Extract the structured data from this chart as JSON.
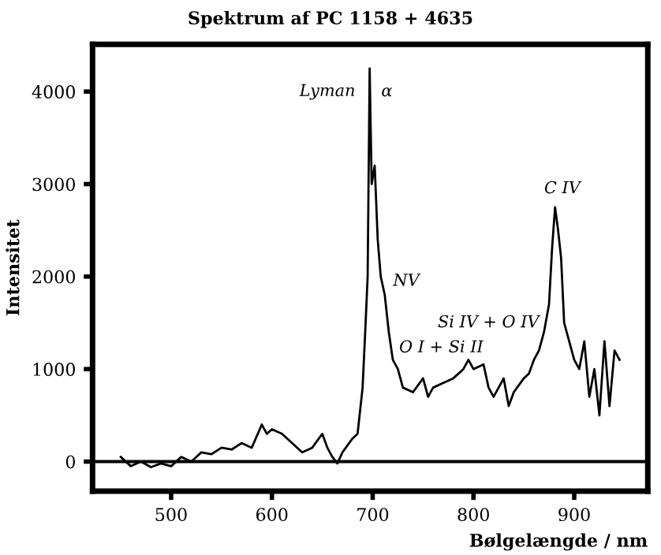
{
  "chart_data": {
    "type": "line",
    "title": "Spektrum af PC 1158 + 4635",
    "xlabel": "Bølgelængde / nm",
    "ylabel": "Intensitet",
    "xlim": [
      422,
      973
    ],
    "ylim": [
      -320,
      4510
    ],
    "xticks": [
      500,
      600,
      700,
      800,
      900
    ],
    "yticks": [
      0,
      1000,
      2000,
      3000,
      4000
    ],
    "grid": false,
    "legend": false,
    "marker": "none",
    "line_style": "solid",
    "ref_lines": [
      {
        "axis": "y",
        "value": 0,
        "label": null,
        "color": "#000000"
      }
    ],
    "annotations": [
      "Lyman",
      "α",
      "NV",
      "Si IV + O IV",
      "O I + Si II",
      "C IV"
    ],
    "series": [
      {
        "color": "#000000",
        "x": [
          450,
          460,
          470,
          480,
          490,
          500,
          510,
          520,
          530,
          540,
          550,
          560,
          570,
          580,
          590,
          595,
          600,
          610,
          620,
          630,
          640,
          650,
          655,
          660,
          665,
          670,
          680,
          685,
          690,
          693,
          695,
          697,
          699,
          702,
          705,
          708,
          712,
          716,
          720,
          725,
          730,
          740,
          750,
          755,
          760,
          770,
          780,
          790,
          795,
          800,
          810,
          815,
          820,
          830,
          835,
          840,
          850,
          855,
          860,
          865,
          870,
          875,
          878,
          881,
          884,
          887,
          890,
          895,
          900,
          905,
          910,
          915,
          920,
          925,
          930,
          935,
          940,
          945
        ],
        "values": [
          50,
          -50,
          0,
          -60,
          -20,
          -50,
          50,
          0,
          100,
          80,
          150,
          130,
          200,
          150,
          400,
          300,
          350,
          300,
          200,
          100,
          150,
          300,
          150,
          50,
          -20,
          100,
          250,
          300,
          800,
          1500,
          2000,
          4250,
          3000,
          3200,
          2400,
          2000,
          1800,
          1400,
          1100,
          1000,
          800,
          750,
          900,
          700,
          800,
          850,
          900,
          1000,
          1100,
          1000,
          1050,
          800,
          700,
          900,
          600,
          750,
          900,
          950,
          1100,
          1200,
          1400,
          1700,
          2300,
          2750,
          2500,
          2200,
          1500,
          1300,
          1100,
          1000,
          1300,
          700,
          1000,
          500,
          1300,
          600,
          1200,
          1100
        ]
      }
    ]
  }
}
